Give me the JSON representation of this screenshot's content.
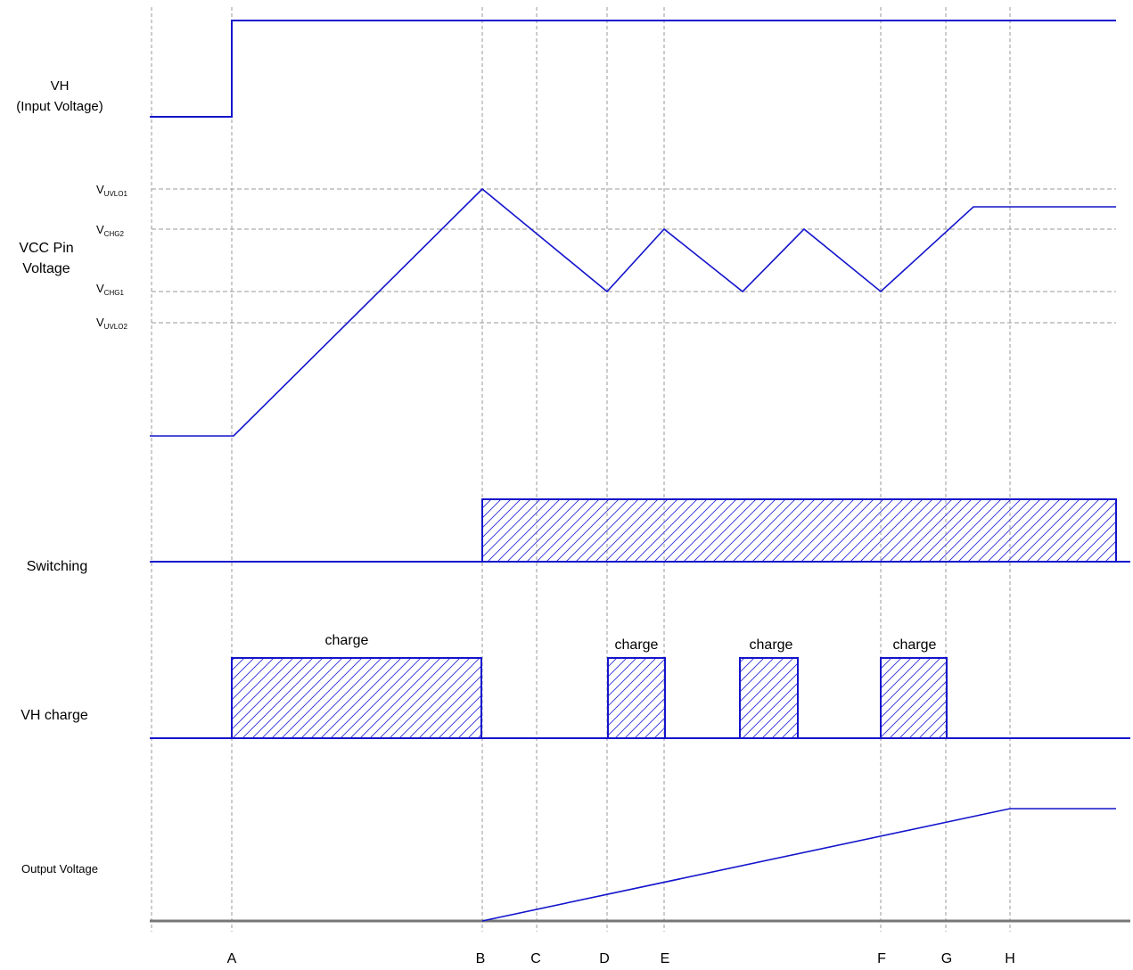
{
  "colors": {
    "signal": "#1414cc",
    "guide": "#999999",
    "hatch": "#2a2ad8",
    "output_base": "#777777",
    "text": "#000000"
  },
  "signals": {
    "vh": {
      "line1": "VH",
      "line2": "(Input Voltage)"
    },
    "vcc": {
      "line1": "VCC Pin",
      "line2": "Voltage"
    },
    "switching": "Switching",
    "vh_charge": "VH charge",
    "output": "Output Voltage"
  },
  "levels": {
    "uvlo1": {
      "main": "V",
      "sub": "UVLO1"
    },
    "chg2": {
      "main": "V",
      "sub": "CHG2"
    },
    "chg1": {
      "main": "V",
      "sub": "CHG1"
    },
    "uvlo2": {
      "main": "V",
      "sub": "UVLO2"
    }
  },
  "charge_labels": [
    "charge",
    "charge",
    "charge",
    "charge"
  ],
  "time_markers": [
    "A",
    "B",
    "C",
    "D",
    "E",
    "F",
    "G",
    "H"
  ]
}
